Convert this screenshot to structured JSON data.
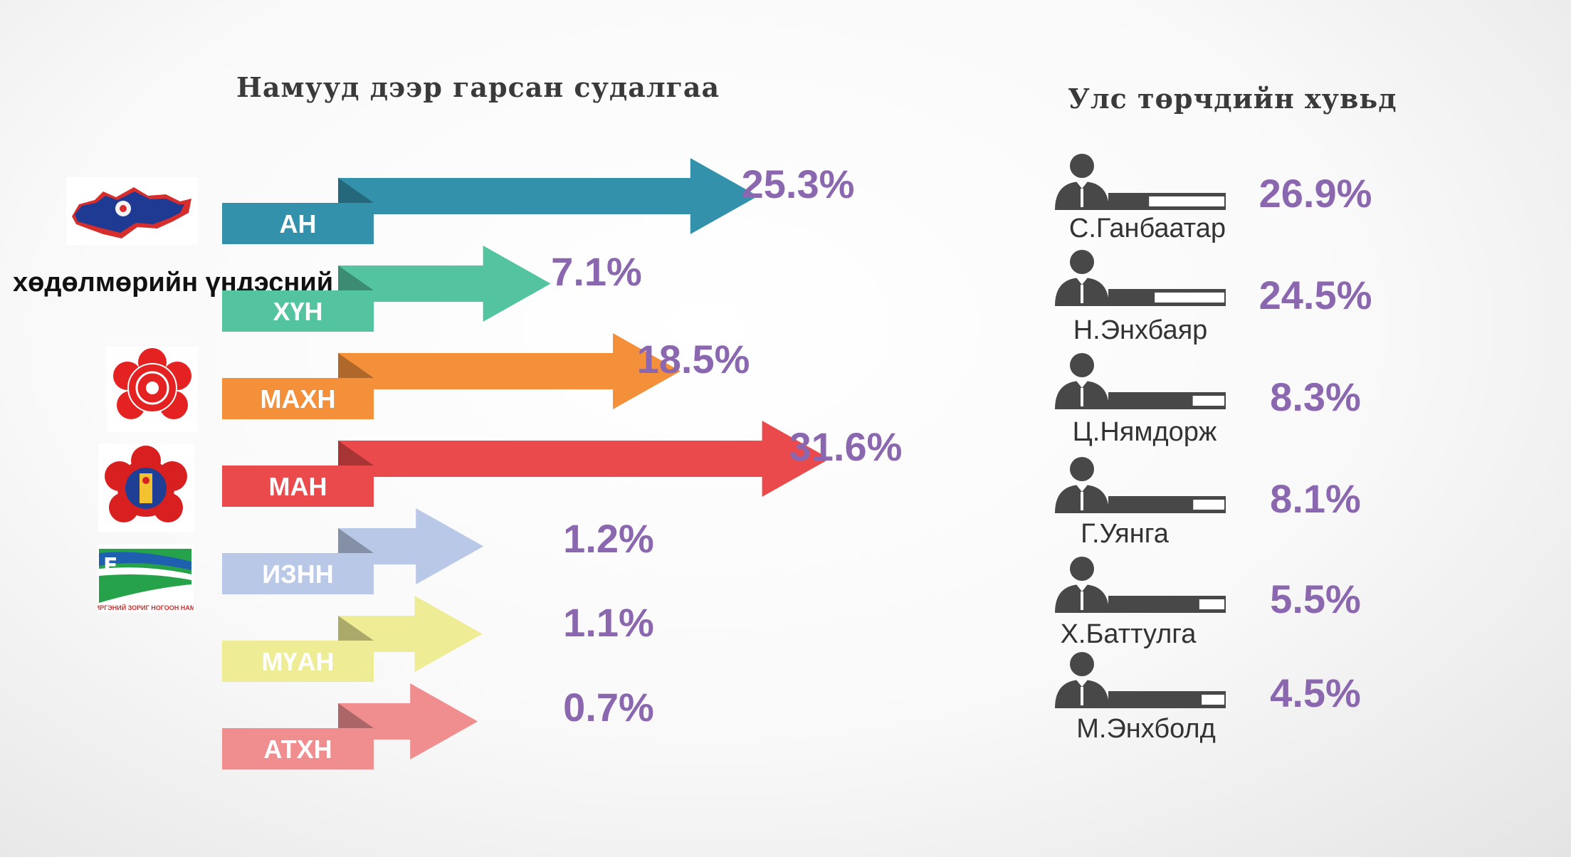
{
  "titles": {
    "parties": "Намууд дээр гарсан судалгаа",
    "president": "Улс төрчдийн хувьд"
  },
  "logos": {
    "party_text_logo": "хөдөлмөрийн үндэсний нам",
    "green_party_caption": "ИРГЭНИЙ ЗОРИГ НОГООН НАМ"
  },
  "chart_data": [
    {
      "type": "bar",
      "title": "Намууд дээр гарсан судалгаа",
      "categories": [
        "АН",
        "ХҮН",
        "МАХН",
        "МАН",
        "ИЗНН",
        "МҮАН",
        "АТХН"
      ],
      "values": [
        25.3,
        7.1,
        18.5,
        31.6,
        1.2,
        1.1,
        0.7
      ],
      "labels": [
        "25.3%",
        "7.1%",
        "18.5%",
        "31.6%",
        "1.2%",
        "1.1%",
        "0.7%"
      ],
      "colors": [
        "#3391ab",
        "#54c3a0",
        "#f48f3a",
        "#ea4a4b",
        "#b8c8e6",
        "#eeec94",
        "#ef8d8f"
      ],
      "label_color": "#8a67ae",
      "orientation": "horizontal",
      "unit": "%"
    },
    {
      "type": "bar",
      "title": "Улс төрчдийн хувьд",
      "categories": [
        "С.Ганбаатар",
        "Н.Энхбаяр",
        "Ц.Нямдорж",
        "Г.Уянга",
        "Х.Баттулга",
        "М.Энхболд"
      ],
      "values": [
        26.9,
        24.5,
        8.3,
        8.1,
        5.5,
        4.5
      ],
      "labels": [
        "26.9%",
        "24.5%",
        "8.3%",
        "8.1%",
        "5.5%",
        "4.5%"
      ],
      "bar_color": "#484848",
      "label_color": "#8a67ae",
      "orientation": "horizontal",
      "unit": "%"
    }
  ]
}
